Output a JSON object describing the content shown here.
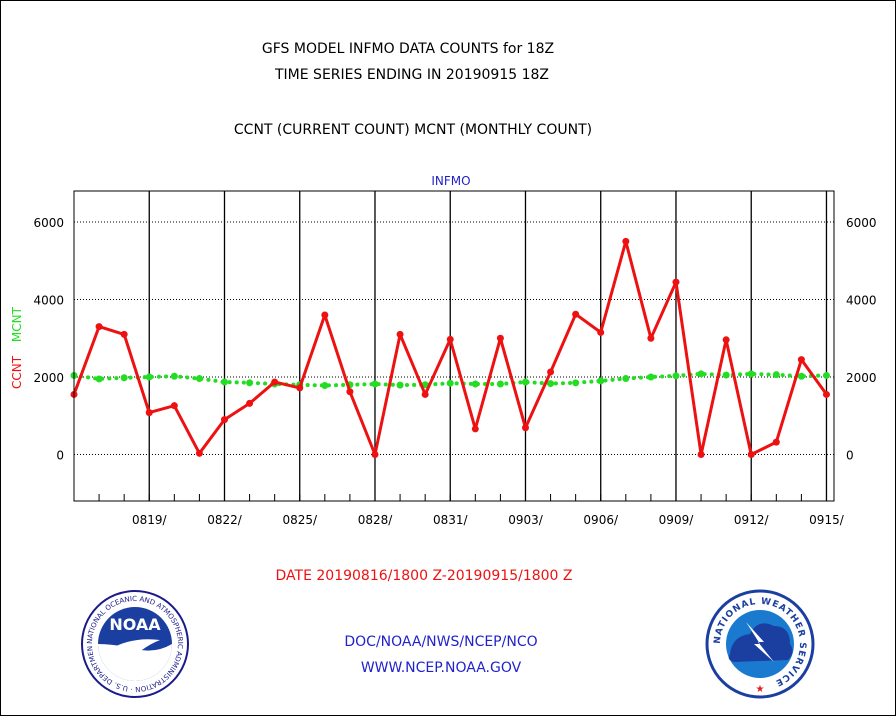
{
  "header": {
    "title_line1": "GFS MODEL INFMO DATA COUNTS for 18Z",
    "title_line2": "TIME SERIES ENDING IN 20190915 18Z",
    "subtitle": "CCNT (CURRENT COUNT) MCNT (MONTHLY COUNT)"
  },
  "footer": {
    "date_range": "DATE 20190816/1800 Z-20190915/1800 Z",
    "org_line": "DOC/NOAA/NWS/NCEP/NCO",
    "url_line": "WWW.NCEP.NOAA.GOV",
    "noaa_logo_text": "NOAA",
    "noaa_ring_text": "NATIONAL OCEANIC AND ATMOSPHERIC ADMINISTRATION · U.S. DEPARTMENT OF COMMERCE",
    "nws_ring_text": "NATIONAL WEATHER SERVICE"
  },
  "colors": {
    "ccnt": "#ee1111",
    "mcnt": "#22dd22",
    "panel_title": "#2222cc",
    "footer_text": "#2222cc",
    "date_text": "#ee1111"
  },
  "chart_data": {
    "type": "line",
    "panel_title": "INFMO",
    "ylabel_parts": [
      {
        "text": "CCNT",
        "color": "#ee1111"
      },
      {
        "text": "MCNT",
        "color": "#22dd22"
      }
    ],
    "ylim": [
      -1200,
      6800
    ],
    "yticks": [
      0,
      2000,
      4000,
      6000
    ],
    "ytick_labels": [
      "0",
      "2000",
      "4000",
      "6000"
    ],
    "xlim": [
      0,
      30.3
    ],
    "xticks": [
      3,
      6,
      9,
      12,
      15,
      18,
      21,
      24,
      27,
      30
    ],
    "xtick_labels": [
      "0819/",
      "0822/",
      "0825/",
      "0828/",
      "0831/",
      "0903/",
      "0906/",
      "0909/",
      "0912/",
      "0915/"
    ],
    "grid": true,
    "series": [
      {
        "name": "CCNT",
        "color": "#ee1111",
        "style": "solid",
        "x": [
          0,
          1,
          2,
          3,
          4,
          5,
          6,
          7,
          8,
          9,
          10,
          11,
          12,
          13,
          14,
          15,
          16,
          17,
          18,
          19,
          20,
          21,
          22,
          23,
          24,
          25,
          26,
          27,
          28,
          29,
          30
        ],
        "values": [
          1550,
          3300,
          3100,
          1080,
          1260,
          30,
          900,
          1320,
          1870,
          1720,
          3600,
          1620,
          0,
          3100,
          1550,
          2970,
          660,
          3000,
          690,
          2130,
          3620,
          3150,
          5500,
          3000,
          4450,
          0,
          2960,
          0,
          320,
          2450,
          1550
        ]
      },
      {
        "name": "MCNT",
        "color": "#22dd22",
        "style": "dotted",
        "x": [
          0,
          1,
          2,
          3,
          4,
          5,
          6,
          7,
          8,
          9,
          10,
          11,
          12,
          13,
          14,
          15,
          16,
          17,
          18,
          19,
          20,
          21,
          22,
          23,
          24,
          25,
          26,
          27,
          28,
          29,
          30
        ],
        "values": [
          2040,
          1950,
          1980,
          2000,
          2020,
          1960,
          1870,
          1850,
          1820,
          1800,
          1780,
          1800,
          1820,
          1790,
          1800,
          1840,
          1820,
          1820,
          1870,
          1830,
          1850,
          1900,
          1960,
          2000,
          2030,
          2080,
          2050,
          2080,
          2060,
          2020,
          2040
        ]
      }
    ]
  }
}
